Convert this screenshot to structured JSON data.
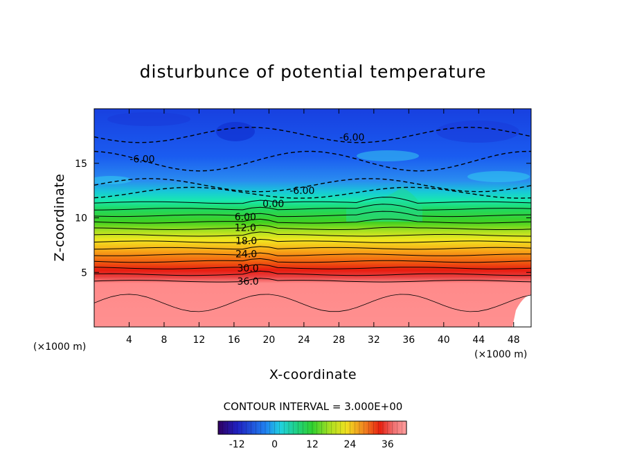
{
  "chart_data": {
    "type": "heatmap",
    "title": "disturbunce of potential temperature",
    "xlabel": "X-coordinate",
    "ylabel": "Z-coordinate",
    "x_unit": "(×1000 m)",
    "y_unit": "(×1000 m)",
    "xlim": [
      0,
      50
    ],
    "ylim": [
      0,
      20
    ],
    "x_ticks": [
      "4",
      "8",
      "12",
      "16",
      "20",
      "24",
      "28",
      "32",
      "36",
      "40",
      "44",
      "48"
    ],
    "y_ticks": [
      "5",
      "10",
      "15"
    ],
    "x_tick_values": [
      4,
      8,
      12,
      16,
      20,
      24,
      28,
      32,
      36,
      40,
      44,
      48
    ],
    "y_tick_values": [
      5,
      10,
      15
    ],
    "contour_interval_text": "CONTOUR INTERVAL = 3.000E+00",
    "contour_labels": [
      {
        "text": "-6.00",
        "x": 5.5,
        "z": 15.4
      },
      {
        "text": "-6.00",
        "x": 29.5,
        "z": 17.4
      },
      {
        "text": "-6.00",
        "x": 23.8,
        "z": 12.5
      },
      {
        "text": "0.00",
        "x": 20.5,
        "z": 11.3
      },
      {
        "text": "6.00",
        "x": 17.3,
        "z": 10.1
      },
      {
        "text": "12.0",
        "x": 17.3,
        "z": 9.1
      },
      {
        "text": "18.0",
        "x": 17.4,
        "z": 7.9
      },
      {
        "text": "24.0",
        "x": 17.4,
        "z": 6.7
      },
      {
        "text": "30.0",
        "x": 17.6,
        "z": 5.4
      },
      {
        "text": "36.0",
        "x": 17.6,
        "z": 4.2
      }
    ],
    "colorbar": {
      "min": -18,
      "max": 42,
      "ticks": [
        "-12",
        "0",
        "12",
        "24",
        "36"
      ],
      "tick_values": [
        -12,
        0,
        12,
        24,
        36
      ]
    },
    "colors": {
      "low": "#200080",
      "mid_blue": "#1a5cf0",
      "cyan": "#18e0e0",
      "green": "#20d040",
      "yellow": "#f0e020",
      "orange": "#f07818",
      "red": "#e82010",
      "high": "#ff8888"
    }
  }
}
